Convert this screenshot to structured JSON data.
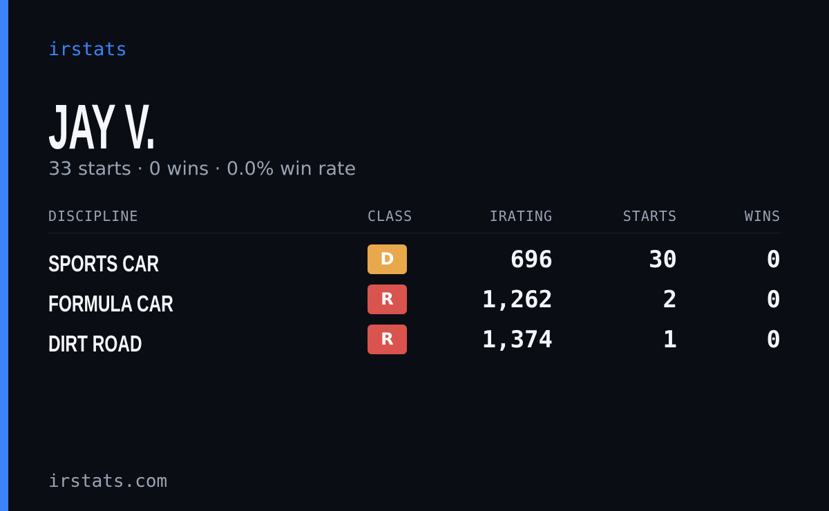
{
  "brand": "irstats",
  "profile": {
    "name": "JAY V.",
    "summary": "33 starts · 0 wins · 0.0% win rate"
  },
  "table": {
    "headers": [
      "DISCIPLINE",
      "CLASS",
      "IRATING",
      "STARTS",
      "WINS"
    ],
    "rows": [
      {
        "discipline": "SPORTS CAR",
        "class": "D",
        "badge_color": "#e9a84c",
        "irating": "696",
        "starts": "30",
        "wins": "0"
      },
      {
        "discipline": "FORMULA CAR",
        "class": "R",
        "badge_color": "#d9534f",
        "irating": "1,262",
        "starts": "2",
        "wins": "0"
      },
      {
        "discipline": "DIRT ROAD",
        "class": "R",
        "badge_color": "#d9534f",
        "irating": "1,374",
        "starts": "1",
        "wins": "0"
      }
    ]
  },
  "footer": "irstats.com"
}
